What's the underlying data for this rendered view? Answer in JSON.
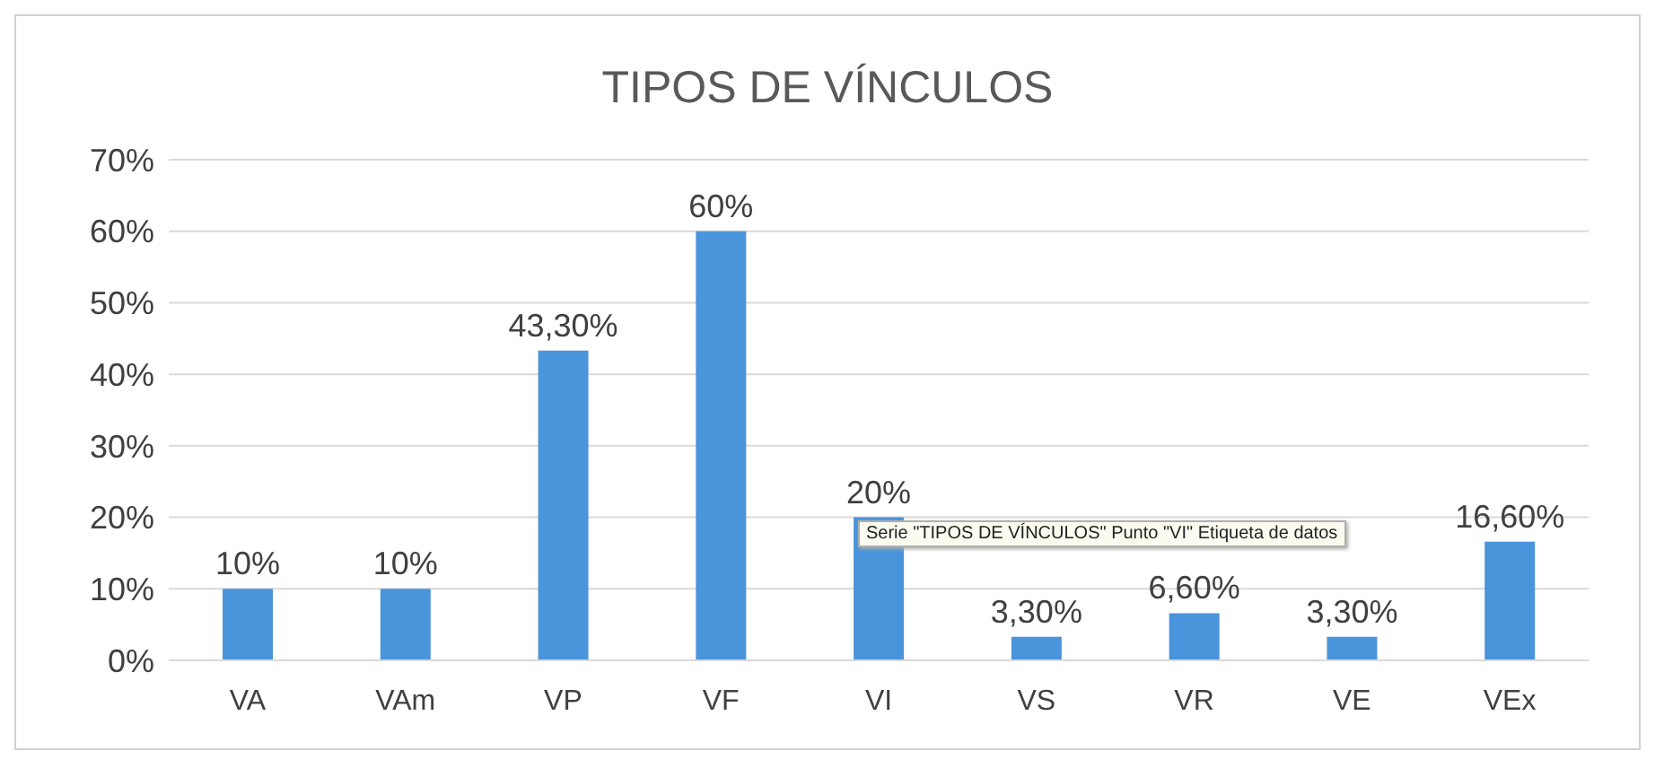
{
  "chart_data": {
    "type": "bar",
    "title": "TIPOS DE VÍNCULOS",
    "categories": [
      "VA",
      "VAm",
      "VP",
      "VF",
      "VI",
      "VS",
      "VR",
      "VE",
      "VEx"
    ],
    "values": [
      10,
      10,
      43.3,
      60,
      20,
      3.3,
      6.6,
      3.3,
      16.6
    ],
    "value_labels": [
      "10%",
      "10%",
      "43,30%",
      "60%",
      "20%",
      "3,30%",
      "6,60%",
      "3,30%",
      "16,60%"
    ],
    "color": "#4a94dc",
    "ylim": [
      0,
      70
    ],
    "yticks": [
      {
        "value": 0,
        "label": "0%"
      },
      {
        "value": 10,
        "label": "10%"
      },
      {
        "value": 20,
        "label": "20%"
      },
      {
        "value": 30,
        "label": "30%"
      },
      {
        "value": 40,
        "label": "40%"
      },
      {
        "value": 50,
        "label": "50%"
      },
      {
        "value": 60,
        "label": "60%"
      },
      {
        "value": 70,
        "label": "70%"
      }
    ],
    "grid": "y",
    "annotations": [
      {
        "text": "Serie \"TIPOS DE VÍNCULOS\" Punto \"VI\" Etiqueta de datos",
        "x": "VI",
        "y": 20
      }
    ]
  }
}
